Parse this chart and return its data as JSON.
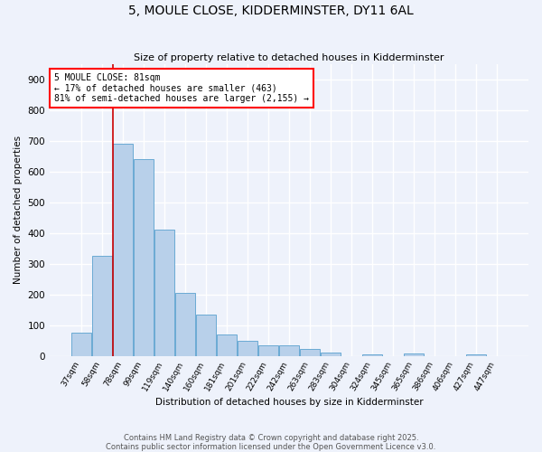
{
  "title1": "5, MOULE CLOSE, KIDDERMINSTER, DY11 6AL",
  "title2": "Size of property relative to detached houses in Kidderminster",
  "xlabel": "Distribution of detached houses by size in Kidderminster",
  "ylabel": "Number of detached properties",
  "categories": [
    "37sqm",
    "58sqm",
    "78sqm",
    "99sqm",
    "119sqm",
    "140sqm",
    "160sqm",
    "181sqm",
    "201sqm",
    "222sqm",
    "242sqm",
    "263sqm",
    "283sqm",
    "304sqm",
    "324sqm",
    "345sqm",
    "365sqm",
    "386sqm",
    "406sqm",
    "427sqm",
    "447sqm"
  ],
  "values": [
    75,
    325,
    690,
    640,
    410,
    205,
    135,
    70,
    48,
    35,
    35,
    22,
    10,
    0,
    5,
    0,
    8,
    0,
    0,
    5,
    0
  ],
  "bar_color": "#b8d0ea",
  "bar_edge_color": "#6aaad4",
  "annotation_text": "5 MOULE CLOSE: 81sqm\n← 17% of detached houses are smaller (463)\n81% of semi-detached houses are larger (2,155) →",
  "vline_color": "#cc0000",
  "ylim": [
    0,
    950
  ],
  "yticks": [
    0,
    100,
    200,
    300,
    400,
    500,
    600,
    700,
    800,
    900
  ],
  "background_color": "#eef2fb",
  "footer": "Contains HM Land Registry data © Crown copyright and database right 2025.\nContains public sector information licensed under the Open Government Licence v3.0.",
  "grid_color": "#ffffff",
  "figsize": [
    6.0,
    5.0
  ],
  "dpi": 100
}
